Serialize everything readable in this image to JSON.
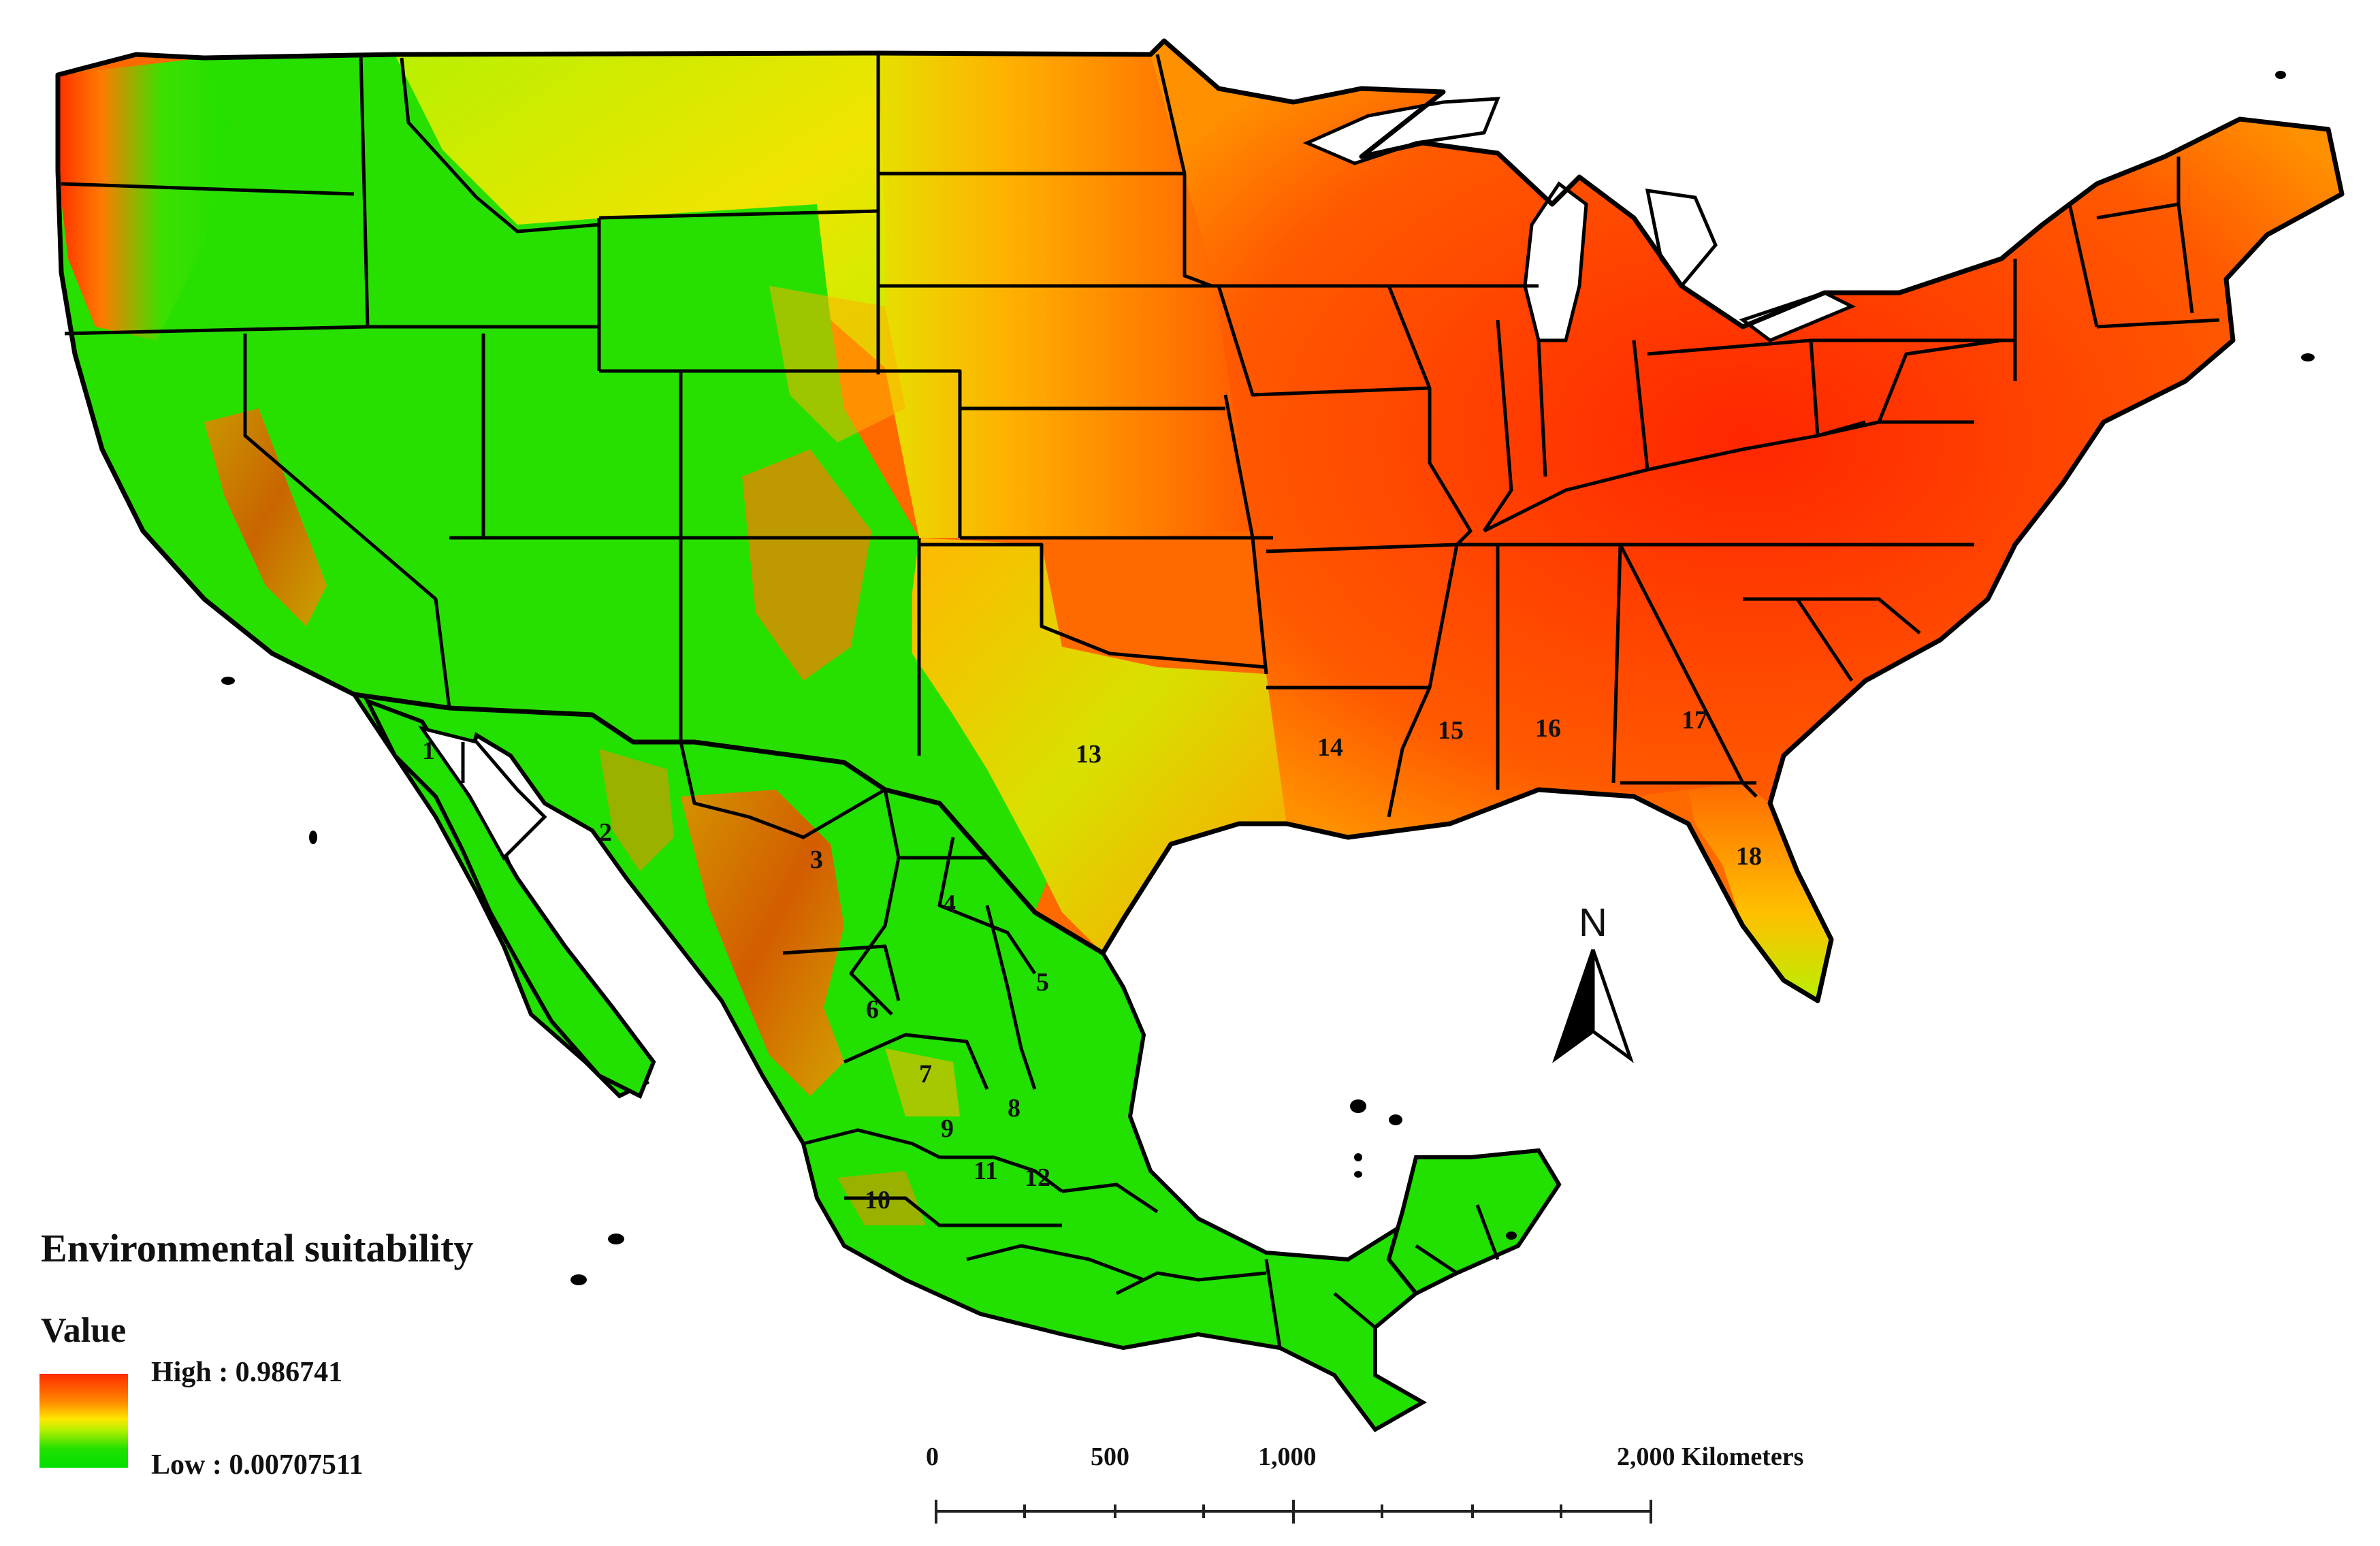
{
  "legend": {
    "title": "Environmental suitability",
    "value_heading": "Value",
    "high_label": "High : 0.986741",
    "low_label": "Low : 0.00707511",
    "high_color": "#ff2a00",
    "low_color": "#00e000"
  },
  "regions": [
    "1",
    "2",
    "3",
    "4",
    "5",
    "6",
    "7",
    "8",
    "9",
    "10",
    "11",
    "12",
    "13",
    "14",
    "15",
    "16",
    "17",
    "18"
  ],
  "north_arrow": {
    "label": "N"
  },
  "scale_bar": {
    "ticks": [
      "0",
      "500",
      "1,000",
      "2,000 Kilometers"
    ]
  },
  "colors": {
    "high_suitability": "#ff3300",
    "mid_suitability": "#ffcc00",
    "low_suitability": "#22e000",
    "border": "#000000",
    "water": "#ffffff"
  }
}
